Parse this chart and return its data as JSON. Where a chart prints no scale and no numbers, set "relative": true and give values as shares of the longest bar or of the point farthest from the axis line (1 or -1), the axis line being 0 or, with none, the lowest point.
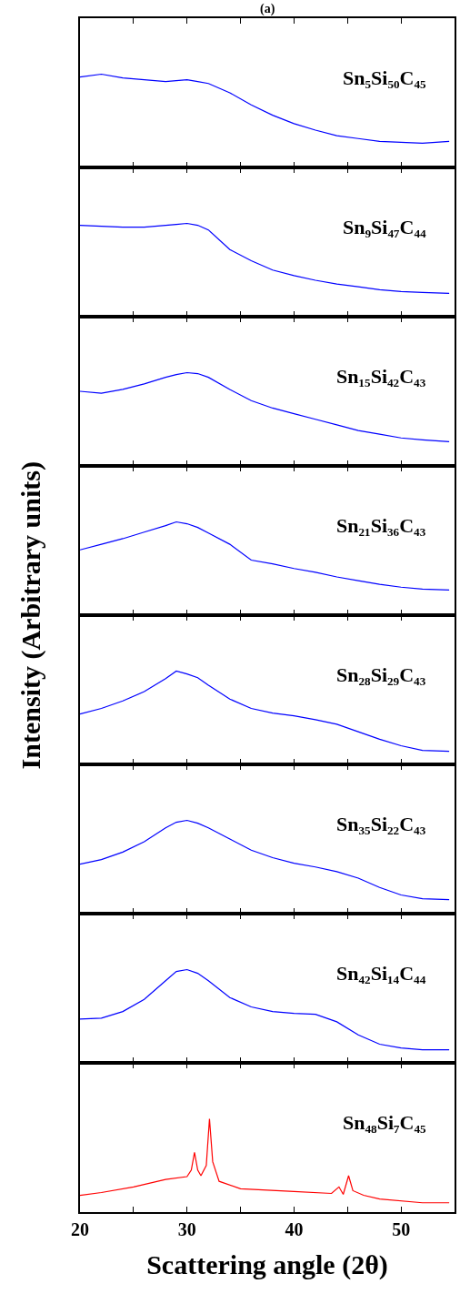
{
  "chart_data": [
    {
      "type": "line",
      "title": "(a)",
      "relative": true,
      "tick_labels": false,
      "xlim": [
        20,
        55
      ],
      "xticks": [
        20,
        {
          "value": 25,
          "label": null
        },
        30,
        {
          "value": 35,
          "label": null
        },
        40,
        {
          "value": 45,
          "label": null
        },
        50
      ],
      "x": [
        20,
        22,
        24,
        26,
        28,
        29,
        30,
        31,
        32,
        34,
        36,
        38,
        40,
        42,
        44,
        46,
        48,
        50,
        52,
        54.5
      ],
      "series": [
        {
          "name": "Sn₅Si₅₀C₄₅",
          "color": "#0000ff",
          "values": [
            0.97,
            1,
            0.96,
            0.94,
            0.92,
            0.93,
            0.94,
            0.92,
            0.9,
            0.8,
            0.67,
            0.56,
            0.47,
            0.4,
            0.34,
            0.31,
            0.28,
            0.27,
            0.26,
            0.28
          ]
        }
      ]
    },
    {
      "type": "line",
      "relative": true,
      "tick_labels": false,
      "xlim": [
        20,
        55
      ],
      "xticks": [
        20,
        {
          "value": 25,
          "label": null
        },
        30,
        {
          "value": 35,
          "label": null
        },
        40,
        {
          "value": 45,
          "label": null
        },
        50
      ],
      "x": [
        20,
        22,
        24,
        26,
        28,
        29,
        30,
        31,
        32,
        34,
        36,
        38,
        40,
        42,
        44,
        46,
        48,
        50,
        52,
        54.5
      ],
      "series": [
        {
          "name": "Sn₉Si₄₇C₄₄",
          "color": "#0000ff",
          "values": [
            0.98,
            0.97,
            0.96,
            0.96,
            0.98,
            0.99,
            1,
            0.98,
            0.93,
            0.72,
            0.6,
            0.5,
            0.44,
            0.39,
            0.35,
            0.32,
            0.29,
            0.27,
            0.26,
            0.25
          ]
        }
      ]
    },
    {
      "type": "line",
      "relative": true,
      "tick_labels": false,
      "xlim": [
        20,
        55
      ],
      "xticks": [
        20,
        {
          "value": 25,
          "label": null
        },
        30,
        {
          "value": 35,
          "label": null
        },
        40,
        {
          "value": 45,
          "label": null
        },
        50
      ],
      "x": [
        20,
        22,
        24,
        26,
        28,
        29,
        30,
        31,
        32,
        34,
        36,
        38,
        40,
        42,
        44,
        46,
        48,
        50,
        52,
        54.5
      ],
      "series": [
        {
          "name": "Sn₁₅Si₄₂C₄₃",
          "color": "#0000ff",
          "values": [
            0.8,
            0.78,
            0.82,
            0.88,
            0.95,
            0.98,
            1,
            0.99,
            0.95,
            0.82,
            0.7,
            0.62,
            0.56,
            0.5,
            0.44,
            0.38,
            0.34,
            0.3,
            0.28,
            0.26
          ]
        }
      ]
    },
    {
      "type": "line",
      "relative": true,
      "tick_labels": false,
      "xlim": [
        20,
        55
      ],
      "xticks": [
        20,
        {
          "value": 25,
          "label": null
        },
        30,
        {
          "value": 35,
          "label": null
        },
        40,
        {
          "value": 45,
          "label": null
        },
        50
      ],
      "x": [
        20,
        22,
        24,
        26,
        28,
        29,
        30,
        31,
        32,
        34,
        36,
        38,
        40,
        42,
        44,
        46,
        48,
        50,
        52,
        54.5
      ],
      "ylabel": "Intensity (Arbitrary units)",
      "series": [
        {
          "name": "Sn₂₁Si₃₆C₄₃",
          "color": "#0000ff",
          "values": [
            0.7,
            0.76,
            0.82,
            0.89,
            0.96,
            1,
            0.98,
            0.94,
            0.88,
            0.76,
            0.59,
            0.55,
            0.5,
            0.46,
            0.41,
            0.37,
            0.33,
            0.3,
            0.28,
            0.27
          ]
        }
      ]
    },
    {
      "type": "line",
      "relative": true,
      "tick_labels": false,
      "xlim": [
        20,
        55
      ],
      "xticks": [
        20,
        {
          "value": 25,
          "label": null
        },
        30,
        {
          "value": 35,
          "label": null
        },
        40,
        {
          "value": 45,
          "label": null
        },
        50
      ],
      "x": [
        20,
        22,
        24,
        26,
        28,
        29,
        30,
        31,
        32,
        34,
        36,
        38,
        40,
        42,
        44,
        46,
        48,
        50,
        52,
        54.5
      ],
      "series": [
        {
          "name": "Sn₂₈Si₂₉C₄₃",
          "color": "#0000ff",
          "values": [
            0.54,
            0.6,
            0.68,
            0.78,
            0.92,
            1,
            0.97,
            0.93,
            0.85,
            0.7,
            0.6,
            0.55,
            0.52,
            0.48,
            0.43,
            0.35,
            0.27,
            0.2,
            0.15,
            0.14
          ]
        }
      ]
    },
    {
      "type": "line",
      "relative": true,
      "tick_labels": false,
      "xlim": [
        20,
        55
      ],
      "xticks": [
        20,
        {
          "value": 25,
          "label": null
        },
        30,
        {
          "value": 35,
          "label": null
        },
        40,
        {
          "value": 45,
          "label": null
        },
        50
      ],
      "x": [
        20,
        22,
        24,
        26,
        28,
        29,
        30,
        31,
        32,
        34,
        36,
        38,
        40,
        42,
        44,
        46,
        48,
        50,
        52,
        54.5
      ],
      "series": [
        {
          "name": "Sn₃₅Si₂₂C₄₃",
          "color": "#0000ff",
          "values": [
            0.53,
            0.58,
            0.66,
            0.77,
            0.92,
            0.98,
            1,
            0.97,
            0.92,
            0.8,
            0.68,
            0.6,
            0.54,
            0.5,
            0.45,
            0.38,
            0.28,
            0.2,
            0.16,
            0.15
          ]
        }
      ]
    },
    {
      "type": "line",
      "relative": true,
      "tick_labels": false,
      "xlim": [
        20,
        55
      ],
      "xticks": [
        20,
        {
          "value": 25,
          "label": null
        },
        30,
        {
          "value": 35,
          "label": null
        },
        40,
        {
          "value": 45,
          "label": null
        },
        50
      ],
      "x": [
        20,
        22,
        24,
        26,
        28,
        29,
        30,
        31,
        32,
        34,
        36,
        38,
        40,
        42,
        44,
        46,
        48,
        50,
        52,
        54.5
      ],
      "series": [
        {
          "name": "Sn₄₂Si₁₄C₄₄",
          "color": "#0000ff",
          "values": [
            0.47,
            0.48,
            0.55,
            0.68,
            0.88,
            0.98,
            1,
            0.96,
            0.88,
            0.7,
            0.6,
            0.55,
            0.53,
            0.52,
            0.44,
            0.3,
            0.2,
            0.16,
            0.14,
            0.14
          ]
        }
      ]
    },
    {
      "type": "line",
      "xlabel": "Scattering angle (2θ)",
      "relative": true,
      "tick_labels": "x",
      "xlim": [
        20,
        55
      ],
      "xticks": [
        20,
        {
          "value": 25,
          "label": null
        },
        30,
        {
          "value": 35,
          "label": null
        },
        40,
        {
          "value": 45,
          "label": null
        },
        50
      ],
      "x": [
        20,
        22,
        25,
        28,
        30,
        30.4,
        30.7,
        31.0,
        31.3,
        31.8,
        32.1,
        32.4,
        33,
        35,
        40,
        43.5,
        44.2,
        44.6,
        45.1,
        45.5,
        46.5,
        48,
        52,
        54.5
      ],
      "series": [
        {
          "name": "Sn₄₈Si₇C₄₅",
          "color": "#ff0000",
          "values": [
            0.18,
            0.21,
            0.27,
            0.35,
            0.38,
            0.45,
            0.64,
            0.45,
            0.39,
            0.5,
            1,
            0.54,
            0.33,
            0.25,
            0.22,
            0.2,
            0.27,
            0.19,
            0.39,
            0.23,
            0.18,
            0.14,
            0.1,
            0.1
          ]
        }
      ]
    }
  ]
}
